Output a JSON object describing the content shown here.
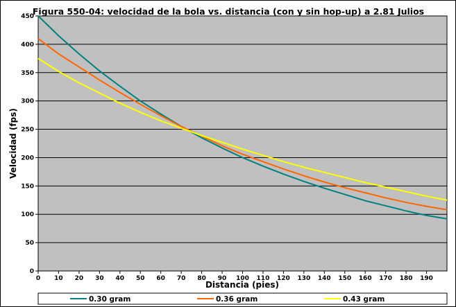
{
  "chart_data": {
    "type": "line",
    "title": "Figura 550-04: velocidad de la bola vs. distancia (con y sin hop-up) a 2.81 Julios",
    "xlabel": "Distancia (pies)",
    "ylabel": "Velocidad (fps)",
    "xlim": [
      0,
      200
    ],
    "ylim": [
      0,
      450
    ],
    "xticks": [
      0,
      10,
      20,
      30,
      40,
      50,
      60,
      70,
      80,
      90,
      100,
      110,
      120,
      130,
      140,
      150,
      160,
      170,
      180,
      190
    ],
    "yticks": [
      0,
      50,
      100,
      150,
      200,
      250,
      300,
      350,
      400,
      450
    ],
    "grid": "horizontal",
    "background": "#c0c0c0",
    "legend_position": "bottom",
    "x": [
      0,
      10,
      20,
      30,
      40,
      50,
      60,
      70,
      80,
      90,
      100,
      110,
      120,
      130,
      140,
      150,
      160,
      170,
      180,
      190,
      200
    ],
    "series": [
      {
        "name": "0.30 gram",
        "color": "#008080",
        "values": [
          450,
          415,
          383,
          353,
          326,
          300,
          277,
          255,
          235,
          217,
          200,
          185,
          171,
          158,
          146,
          135,
          124,
          115,
          106,
          98,
          92
        ]
      },
      {
        "name": "0.36 gram",
        "color": "#ff6600",
        "values": [
          410,
          383,
          360,
          337,
          315,
          294,
          274,
          255,
          238,
          221,
          206,
          193,
          180,
          168,
          157,
          147,
          138,
          129,
          121,
          114,
          108
        ]
      },
      {
        "name": "0.43 gram",
        "color": "#ffff00",
        "values": [
          375,
          352,
          332,
          314,
          296,
          280,
          265,
          252,
          239,
          227,
          215,
          204,
          193,
          183,
          174,
          165,
          156,
          148,
          140,
          132,
          125
        ]
      }
    ]
  }
}
